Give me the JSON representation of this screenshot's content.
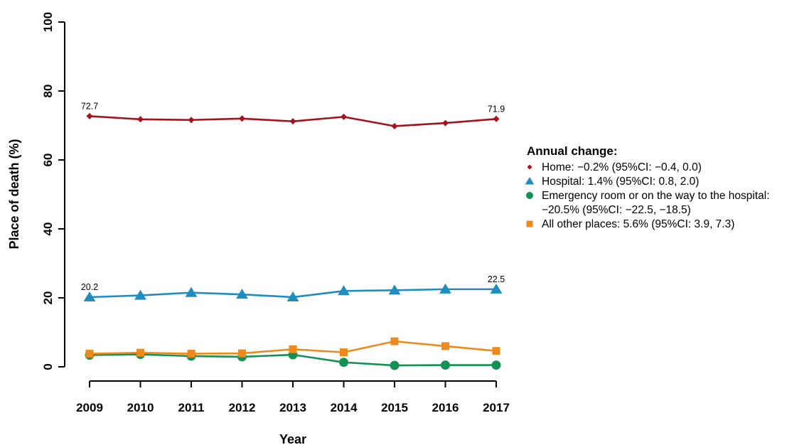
{
  "chart_data": {
    "type": "line",
    "title": "",
    "xlabel": "Year",
    "ylabel": "Place of death (%)",
    "x": [
      2009,
      2010,
      2011,
      2012,
      2013,
      2014,
      2015,
      2016,
      2017
    ],
    "xtick_labels": [
      "2009",
      "2010",
      "2011",
      "2012",
      "2013",
      "2014",
      "2015",
      "2016",
      "2017"
    ],
    "ylim": [
      0,
      100
    ],
    "yticks": [
      0,
      20,
      40,
      60,
      80,
      100
    ],
    "ytick_labels": [
      "0",
      "20",
      "40",
      "60",
      "80",
      "100"
    ],
    "grid": false,
    "legend_placement": "right",
    "legend_title": "Annual change:",
    "series": [
      {
        "id": "home",
        "legend_lines": [
          "Home: −0.2% (95%CI: −0.4, 0.0)"
        ],
        "color": "#a5121b",
        "marker": "diamond",
        "values": [
          72.7,
          71.8,
          71.6,
          72.0,
          71.2,
          72.5,
          69.8,
          70.7,
          71.9
        ]
      },
      {
        "id": "hospital",
        "legend_lines": [
          "Hospital: 1.4% (95%CI: 0.8, 2.0)"
        ],
        "color": "#1f8dc0",
        "marker": "triangle",
        "values": [
          20.2,
          20.7,
          21.5,
          21.0,
          20.2,
          22.0,
          22.2,
          22.5,
          22.5
        ]
      },
      {
        "id": "emergency",
        "legend_lines": [
          "Emergency room or on the way to the hospital:",
          "−20.5% (95%CI: −22.5, −18.5)"
        ],
        "color": "#149155",
        "marker": "circle",
        "values": [
          3.4,
          3.6,
          3.1,
          2.9,
          3.5,
          1.3,
          0.4,
          0.5,
          0.5
        ]
      },
      {
        "id": "other",
        "legend_lines": [
          "All other places: 5.6% (95%CI: 3.9, 7.3)"
        ],
        "color": "#ee8a1c",
        "marker": "square",
        "values": [
          3.8,
          4.1,
          3.8,
          3.9,
          5.1,
          4.2,
          7.4,
          6.0,
          4.6
        ]
      }
    ],
    "annotations": [
      {
        "text": "72.7",
        "x": 2009,
        "y": 72.7
      },
      {
        "text": "71.9",
        "x": 2017,
        "y": 71.9
      },
      {
        "text": "20.2",
        "x": 2009,
        "y": 20.2
      },
      {
        "text": "22.5",
        "x": 2017,
        "y": 22.5
      }
    ]
  }
}
